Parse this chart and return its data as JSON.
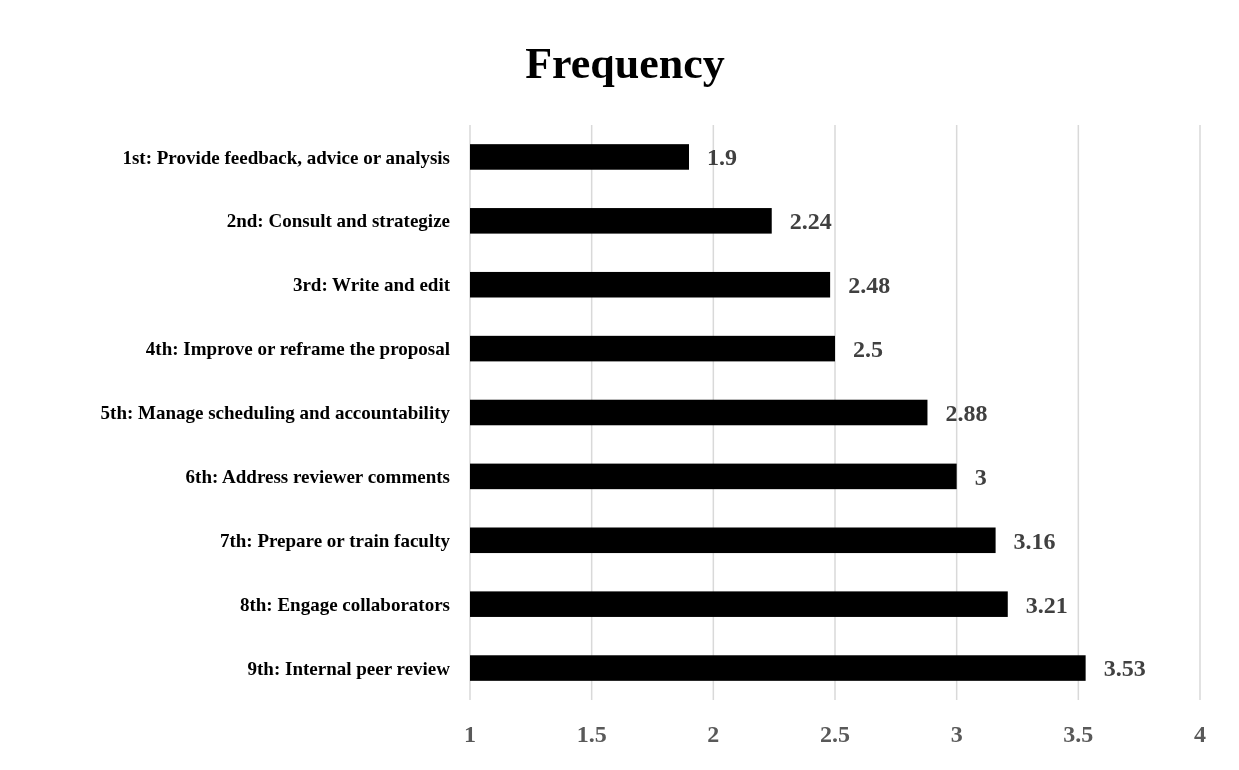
{
  "chart_data": {
    "type": "bar",
    "title": "Frequency",
    "orientation": "horizontal",
    "categories": [
      "1st: Provide feedback, advice or analysis",
      "2nd: Consult and strategize",
      "3rd: Write and edit",
      "4th: Improve or reframe the proposal",
      "5th: Manage scheduling and accountability",
      "6th: Address reviewer comments",
      "7th: Prepare or train faculty",
      "8th: Engage collaborators",
      "9th: Internal peer review"
    ],
    "values": [
      1.9,
      2.24,
      2.48,
      2.5,
      2.88,
      3,
      3.16,
      3.21,
      3.53
    ],
    "color": "#000000",
    "xlim": [
      1,
      4
    ],
    "xticks": [
      1,
      1.5,
      2,
      2.5,
      3,
      3.5,
      4
    ],
    "grid": "x",
    "data_labels": true
  }
}
